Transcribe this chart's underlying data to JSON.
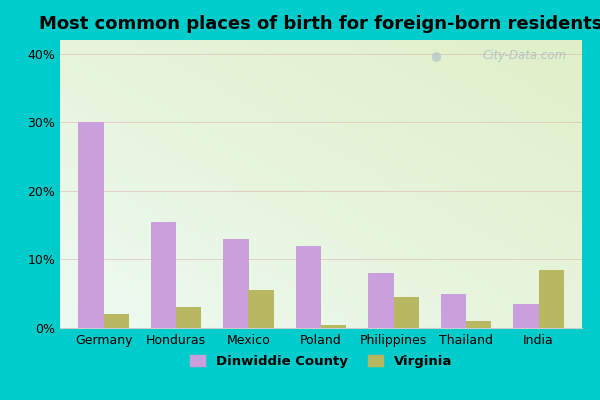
{
  "title": "Most common places of birth for foreign-born residents",
  "categories": [
    "Germany",
    "Honduras",
    "Mexico",
    "Poland",
    "Philippines",
    "Thailand",
    "India"
  ],
  "dinwiddie_values": [
    30,
    15.5,
    13,
    12,
    8,
    5,
    3.5
  ],
  "virginia_values": [
    2,
    3,
    5.5,
    0.5,
    4.5,
    1,
    8.5
  ],
  "dinwiddie_color": "#c9a0dc",
  "virginia_color": "#b8b860",
  "bar_width": 0.35,
  "ylim": [
    0,
    42
  ],
  "yticks": [
    0,
    10,
    20,
    30,
    40
  ],
  "ytick_labels": [
    "0%",
    "10%",
    "20%",
    "30%",
    "40%"
  ],
  "legend_labels": [
    "Dinwiddie County",
    "Virginia"
  ],
  "outer_background": "#00cccc",
  "watermark": "City-Data.com",
  "title_fontsize": 13,
  "tick_fontsize": 9
}
